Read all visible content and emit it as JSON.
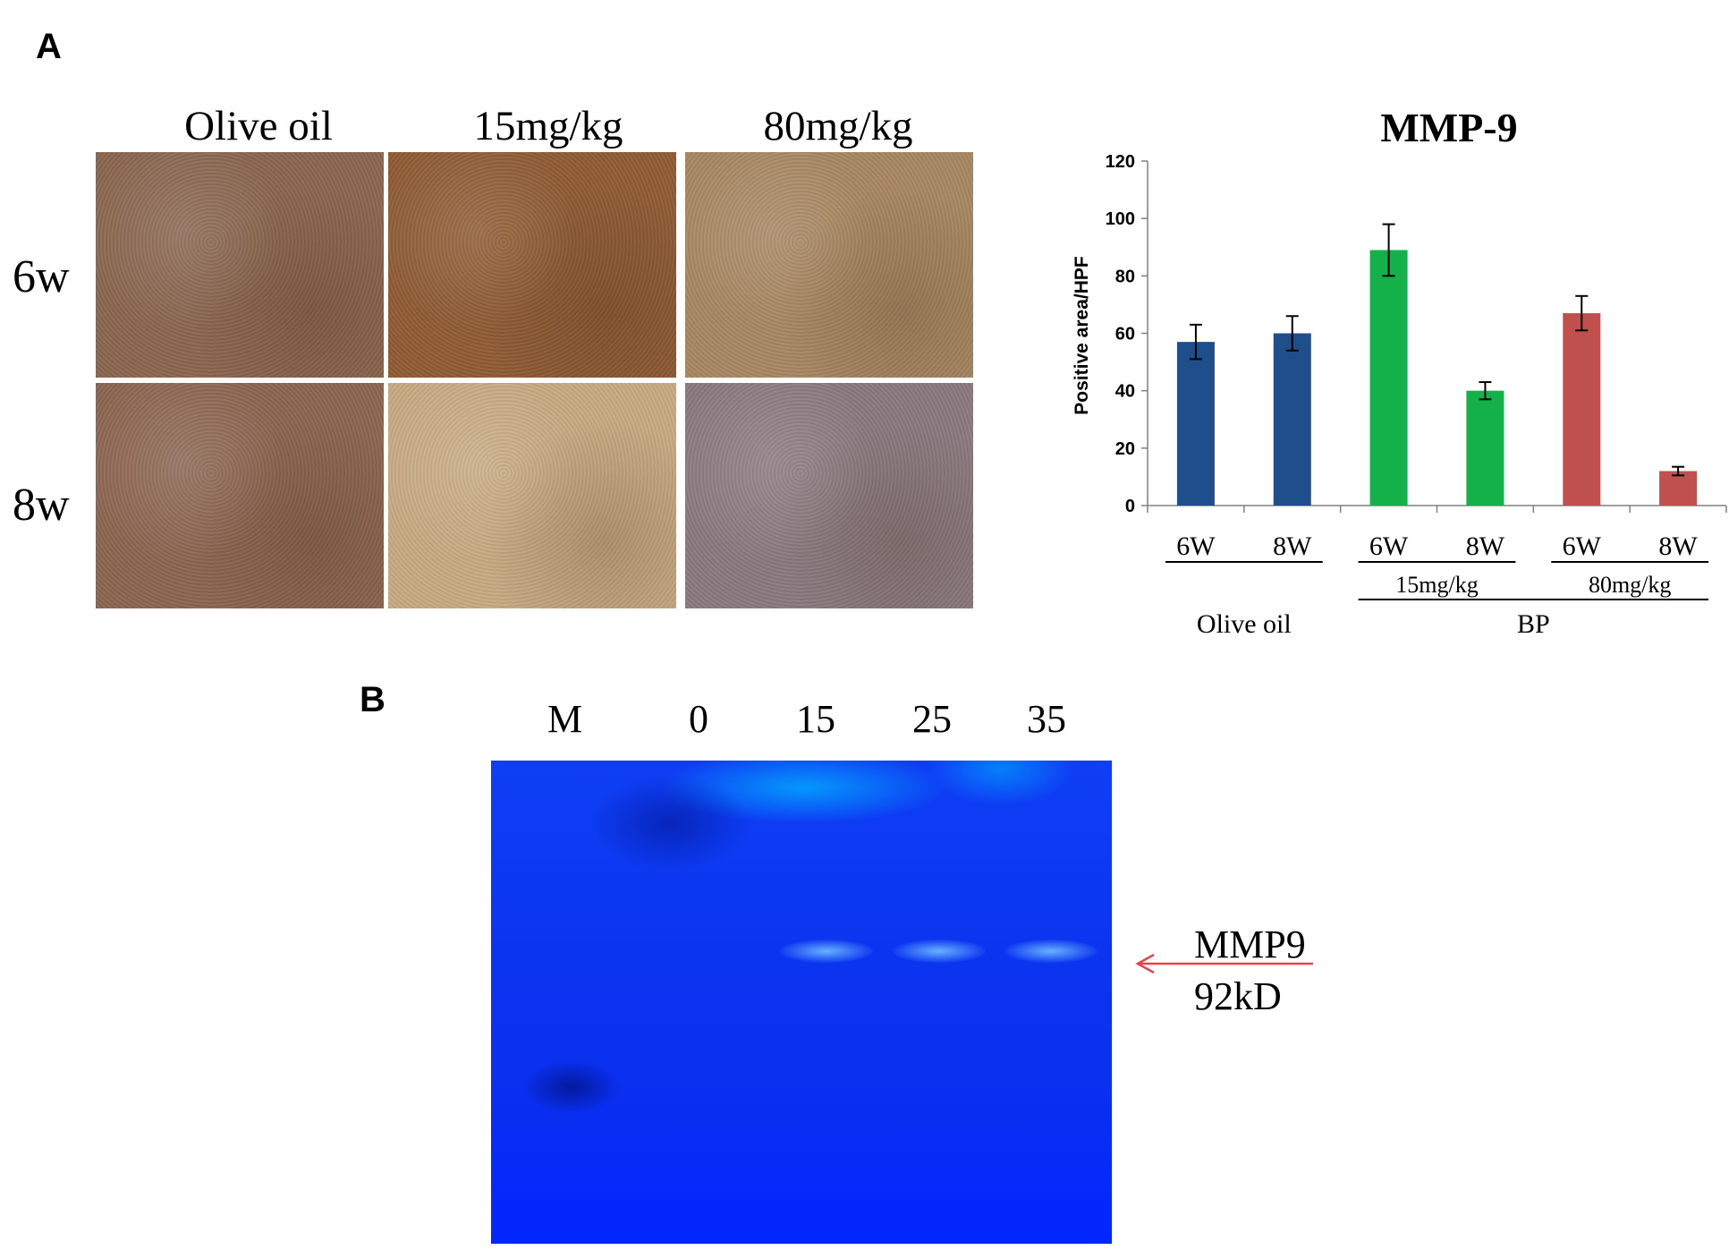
{
  "panel_a_label": "A",
  "panel_b_label": "B",
  "histology": {
    "columns": [
      "Olive oil",
      "15mg/kg",
      "80mg/kg"
    ],
    "rows": [
      "6w",
      "8w"
    ],
    "tile_colors": [
      [
        "#8a6650",
        "#8f5c35",
        "#a88762"
      ],
      [
        "#8c6651",
        "#c7aa82",
        "#8b7a80"
      ]
    ]
  },
  "chart_data": {
    "type": "bar",
    "title": "MMP-9",
    "ylabel": "Positive area/HPF",
    "xlabel": "",
    "ylim": [
      0,
      120
    ],
    "yticks": [
      0,
      20,
      40,
      60,
      80,
      100,
      120
    ],
    "categories": [
      "6W",
      "8W",
      "6W",
      "8W",
      "6W",
      "8W"
    ],
    "values": [
      57,
      60,
      89,
      40,
      67,
      12
    ],
    "errors": [
      6,
      6,
      9,
      3,
      6,
      1.5
    ],
    "colors": [
      "#1f4e8c",
      "#1f4e8c",
      "#14b04a",
      "#14b04a",
      "#c0504d",
      "#c0504d"
    ],
    "groups": [
      {
        "label": "Olive oil",
        "indices": [
          0,
          1
        ]
      },
      {
        "label": "15mg/kg",
        "indices": [
          2,
          3
        ]
      },
      {
        "label": "80mg/kg",
        "indices": [
          4,
          5
        ]
      }
    ],
    "supergroups": [
      {
        "label": "Olive oil",
        "indices": [
          0,
          1
        ]
      },
      {
        "label": "BP",
        "indices": [
          2,
          3,
          4,
          5
        ]
      }
    ]
  },
  "gel": {
    "lanes": [
      "M",
      "0",
      "15",
      "25",
      "35"
    ],
    "annotation_name": "MMP9",
    "annotation_size": "92kD",
    "arrow_color": "#e0474c"
  }
}
